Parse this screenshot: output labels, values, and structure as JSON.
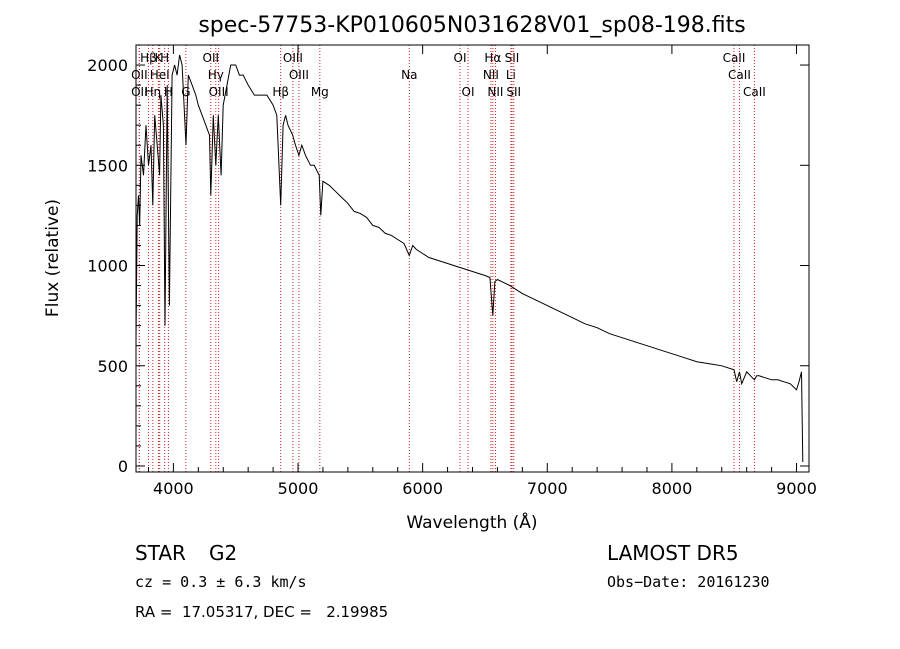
{
  "chart_data": {
    "type": "line",
    "title": "spec-57753-KP010605N031628V01_sp08-198.fits",
    "xlabel": "Wavelength (Å)",
    "ylabel": "Flux (relative)",
    "xlim": [
      3700,
      9100
    ],
    "ylim": [
      -30,
      2100
    ],
    "x_ticks": [
      4000,
      5000,
      6000,
      7000,
      8000,
      9000
    ],
    "y_ticks": [
      0,
      500,
      1000,
      1500,
      2000
    ],
    "grid": false,
    "line_color": "#000000",
    "line_marker_color": "#cc2222",
    "series": [
      {
        "x": [
          3700,
          3710,
          3720,
          3730,
          3740,
          3760,
          3780,
          3800,
          3820,
          3835,
          3850,
          3870,
          3889,
          3900,
          3920,
          3933,
          3950,
          3968,
          3990,
          4010,
          4030,
          4050,
          4070,
          4101,
          4120,
          4150,
          4180,
          4200,
          4230,
          4260,
          4290,
          4300,
          4320,
          4340,
          4360,
          4383,
          4400,
          4430,
          4460,
          4500,
          4530,
          4560,
          4600,
          4650,
          4700,
          4750,
          4800,
          4830,
          4861,
          4880,
          4900,
          4920,
          4957,
          4980,
          5007,
          5030,
          5060,
          5100,
          5130,
          5170,
          5183,
          5200,
          5250,
          5300,
          5350,
          5400,
          5450,
          5500,
          5550,
          5600,
          5650,
          5700,
          5750,
          5800,
          5850,
          5893,
          5920,
          5950,
          6000,
          6050,
          6100,
          6150,
          6200,
          6250,
          6300,
          6350,
          6400,
          6450,
          6500,
          6540,
          6563,
          6580,
          6600,
          6650,
          6700,
          6750,
          6800,
          6900,
          7000,
          7100,
          7200,
          7300,
          7400,
          7500,
          7600,
          7700,
          7800,
          7900,
          8000,
          8100,
          8200,
          8300,
          8400,
          8498,
          8520,
          8542,
          8560,
          8600,
          8662,
          8680,
          8700,
          8750,
          8800,
          8850,
          8900,
          8950,
          9000,
          9020,
          9040,
          9050
        ],
        "y": [
          620,
          1250,
          1350,
          1200,
          1550,
          1450,
          1700,
          1500,
          1600,
          1300,
          1750,
          1600,
          1450,
          1850,
          1700,
          700,
          1900,
          800,
          1950,
          2000,
          1950,
          2050,
          2000,
          1600,
          1950,
          1900,
          1850,
          1800,
          1750,
          1700,
          1650,
          1350,
          1750,
          1500,
          1750,
          1450,
          1800,
          1900,
          2000,
          2000,
          1950,
          1950,
          1900,
          1850,
          1850,
          1850,
          1800,
          1750,
          1300,
          1700,
          1750,
          1700,
          1650,
          1600,
          1550,
          1600,
          1550,
          1500,
          1500,
          1450,
          1250,
          1420,
          1400,
          1370,
          1340,
          1310,
          1270,
          1260,
          1240,
          1200,
          1190,
          1160,
          1150,
          1130,
          1110,
          1050,
          1100,
          1080,
          1060,
          1040,
          1030,
          1020,
          1010,
          1000,
          990,
          980,
          970,
          960,
          950,
          940,
          750,
          920,
          930,
          915,
          900,
          880,
          860,
          830,
          800,
          770,
          740,
          710,
          690,
          660,
          640,
          620,
          600,
          580,
          560,
          540,
          520,
          510,
          500,
          480,
          420,
          470,
          410,
          470,
          430,
          450,
          450,
          440,
          430,
          430,
          420,
          410,
          380,
          420,
          470,
          20
        ]
      }
    ],
    "line_markers": [
      {
        "label": "Hβ",
        "x": 3800,
        "row": 1
      },
      {
        "label": "K",
        "x": 3880,
        "row": 1
      },
      {
        "label": "H",
        "x": 3930,
        "row": 1
      },
      {
        "label": "OII",
        "x": 3727,
        "row": 2
      },
      {
        "label": "HeI",
        "x": 3890,
        "row": 2
      },
      {
        "label": "Hη",
        "x": 3835,
        "row": 3
      },
      {
        "label": "H",
        "x": 3960,
        "row": 3
      },
      {
        "label": "OII",
        "x": 3727,
        "row": 3
      },
      {
        "label": "G",
        "x": 4100,
        "row": 3
      },
      {
        "label": "OII",
        "x": 4300,
        "row": 1
      },
      {
        "label": "Hγ",
        "x": 4340,
        "row": 2
      },
      {
        "label": "OIII",
        "x": 4363,
        "row": 3
      },
      {
        "label": "Hβ",
        "x": 4861,
        "row": 3
      },
      {
        "label": "OIII",
        "x": 4959,
        "row": 1
      },
      {
        "label": "OIII",
        "x": 5007,
        "row": 2
      },
      {
        "label": "Mg",
        "x": 5175,
        "row": 3
      },
      {
        "label": "Na",
        "x": 5893,
        "row": 2
      },
      {
        "label": "OI",
        "x": 6300,
        "row": 1
      },
      {
        "label": "OI",
        "x": 6364,
        "row": 3
      },
      {
        "label": "Hα",
        "x": 6563,
        "row": 1
      },
      {
        "label": "NII",
        "x": 6548,
        "row": 2
      },
      {
        "label": "NII",
        "x": 6584,
        "row": 3
      },
      {
        "label": "SII",
        "x": 6717,
        "row": 1
      },
      {
        "label": "Li",
        "x": 6708,
        "row": 2
      },
      {
        "label": "SII",
        "x": 6731,
        "row": 3
      },
      {
        "label": "CaII",
        "x": 8498,
        "row": 1
      },
      {
        "label": "CaII",
        "x": 8542,
        "row": 2
      },
      {
        "label": "CaII",
        "x": 8662,
        "row": 3
      }
    ]
  },
  "footer": {
    "object_class": "STAR",
    "subclass": "G2",
    "survey": "LAMOST DR5",
    "redshift": "cz = 0.3 ± 6.3 km/s",
    "obs_date": "Obs−Date: 20161230",
    "coords": "RA =  17.05317, DEC =   2.19985"
  }
}
